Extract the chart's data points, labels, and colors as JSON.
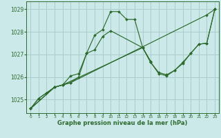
{
  "background_color": "#cce9e9",
  "grid_color": "#aacccc",
  "line_color": "#2d6a2d",
  "xlabel": "Graphe pression niveau de la mer (hPa)",
  "ylim": [
    1024.4,
    1029.35
  ],
  "xlim": [
    -0.5,
    23.5
  ],
  "xticks": [
    0,
    1,
    2,
    3,
    4,
    5,
    6,
    7,
    8,
    9,
    10,
    11,
    12,
    13,
    14,
    15,
    16,
    17,
    18,
    19,
    20,
    21,
    22,
    23
  ],
  "yticks": [
    1025,
    1026,
    1027,
    1028,
    1029
  ],
  "series": [
    {
      "x": [
        0,
        1,
        2,
        3,
        4,
        5,
        6,
        7,
        8,
        9,
        10,
        11,
        12,
        13,
        14,
        15
      ],
      "y": [
        1024.6,
        1025.05,
        1025.3,
        1025.55,
        1025.65,
        1026.05,
        1026.15,
        1027.05,
        1027.85,
        1028.1,
        1028.9,
        1028.9,
        1028.55,
        1028.55,
        1027.3,
        1026.7
      ]
    },
    {
      "x": [
        0,
        1,
        2,
        3,
        4,
        5,
        22,
        23
      ],
      "y": [
        1024.6,
        1025.05,
        1025.3,
        1025.55,
        1025.65,
        1025.75,
        1028.75,
        1029.0
      ]
    },
    {
      "x": [
        0,
        3,
        4,
        5,
        6,
        7,
        8,
        9,
        10,
        14,
        15,
        16,
        17,
        18,
        19,
        20,
        21,
        22,
        23
      ],
      "y": [
        1024.6,
        1025.55,
        1025.65,
        1025.75,
        1026.0,
        1027.05,
        1027.2,
        1027.8,
        1028.05,
        1027.3,
        1026.65,
        1026.2,
        1026.1,
        1026.3,
        1026.6,
        1027.05,
        1027.45,
        1027.5,
        1029.0
      ]
    },
    {
      "x": [
        0,
        3,
        4,
        14,
        15,
        16,
        17,
        18,
        19,
        20,
        21,
        22,
        23
      ],
      "y": [
        1024.6,
        1025.55,
        1025.65,
        1027.3,
        1026.65,
        1026.15,
        1026.05,
        1026.3,
        1026.65,
        1027.05,
        1027.45,
        1027.5,
        1029.0
      ]
    }
  ]
}
